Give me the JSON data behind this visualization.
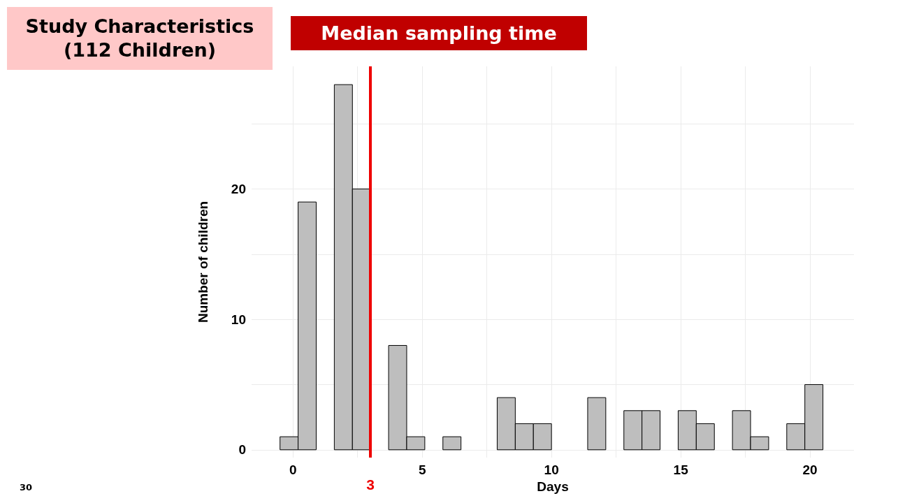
{
  "chart_data": {
    "type": "histogram",
    "title": "Study Characteristics\n(112 Children)",
    "subtitle": "Median sampling time",
    "xlabel": "Days",
    "ylabel": "Number of children",
    "bins": [
      -0.5,
      0.2,
      0.9,
      1.6,
      2.3,
      3.0,
      3.7,
      4.4,
      5.1,
      5.8,
      6.5,
      7.2,
      7.9,
      8.6,
      9.3,
      10.0,
      10.7,
      11.4,
      12.1,
      12.8,
      13.5,
      14.2,
      14.9,
      15.6,
      16.3,
      17.0,
      17.7,
      18.4,
      19.1,
      19.8,
      20.5
    ],
    "values": [
      1,
      19,
      0,
      28,
      20,
      0,
      8,
      1,
      0,
      1,
      0,
      0,
      4,
      2,
      2,
      0,
      0,
      4,
      0,
      3,
      3,
      0,
      3,
      2,
      0,
      3,
      1,
      0,
      2,
      5
    ],
    "color": "#bebebe",
    "xlim": [
      -1.6,
      21.7
    ],
    "xticks": [
      0,
      {
        "value": 2.5,
        "label": null
      },
      5,
      {
        "value": 7.5,
        "label": null
      },
      10,
      {
        "value": 12.5,
        "label": null
      },
      15,
      {
        "value": 17.5,
        "label": null
      },
      20
    ],
    "ylim": [
      -0.6,
      29.4
    ],
    "yticks": [
      0,
      {
        "value": 5,
        "label": null
      },
      10,
      {
        "value": 15,
        "label": null
      },
      20,
      {
        "value": 25,
        "label": null
      }
    ],
    "grid": true,
    "ref_lines": [
      {
        "axis": "x",
        "value": 3,
        "label": "3",
        "color": "#ee0000"
      }
    ],
    "annotations": [
      "30"
    ]
  }
}
